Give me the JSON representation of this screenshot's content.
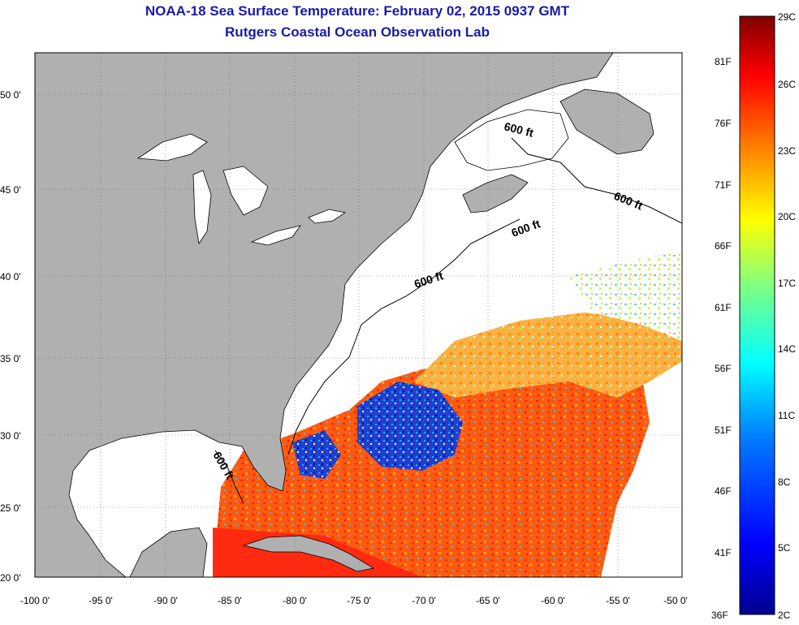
{
  "title": "NOAA-18 Sea Surface Temperature:  February 02, 2015 0937 GMT",
  "subtitle": "Rutgers Coastal Ocean Observation Lab",
  "map": {
    "lon_range": [
      -100,
      -50
    ],
    "lat_range": [
      20,
      52.5
    ],
    "lon_ticks": [
      "-100 0'",
      "-95 0'",
      "-90 0'",
      "-85 0'",
      "-80 0'",
      "-75 0'",
      "-70 0'",
      "-65 0'",
      "-60 0'",
      "-55 0'",
      "-50 0'"
    ],
    "lat_ticks": [
      "50 0'",
      "45 0'",
      "40 0'",
      "35 0'",
      "30 0'",
      "25 0'",
      "20 0'"
    ],
    "contour_label": "600 ft",
    "land_color": "#b0b0b0",
    "no_data_color": "#ffffff"
  },
  "colorbar": {
    "celsius_labels": [
      "29C",
      "26C",
      "23C",
      "20C",
      "17C",
      "14C",
      "11C",
      "8C",
      "5C",
      "2C"
    ],
    "fahrenheit_labels": [
      "81F",
      "76F",
      "71F",
      "66F",
      "61F",
      "56F",
      "51F",
      "46F",
      "41F",
      "36F"
    ],
    "stops": [
      "#800000",
      "#ff0000",
      "#ff8000",
      "#ffff00",
      "#80ff80",
      "#00ffff",
      "#0080ff",
      "#0000ff",
      "#00008f"
    ]
  }
}
